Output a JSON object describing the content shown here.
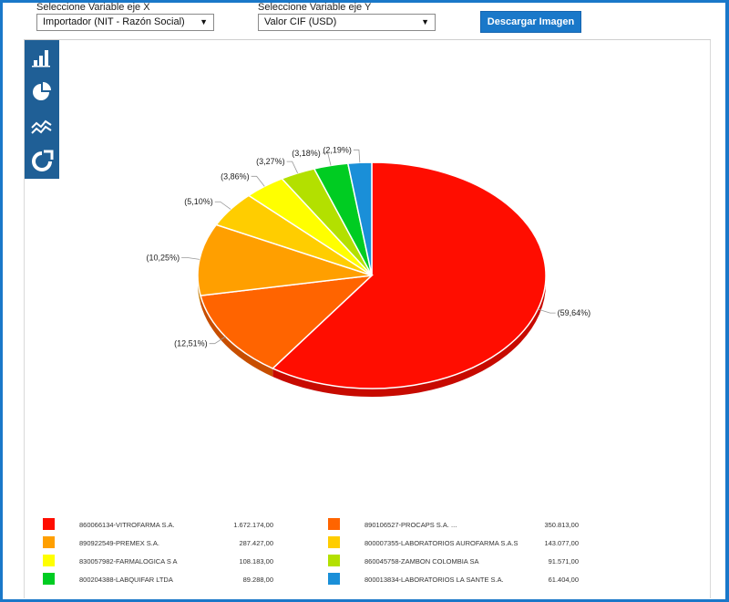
{
  "controls": {
    "x_label": "Seleccione Variable eje X",
    "x_value": "Importador (NIT - Razón Social)",
    "y_label": "Seleccione Variable eje Y",
    "y_value": "Valor CIF (USD)",
    "download_label": "Descargar Imagen"
  },
  "toolbar": {
    "icons": [
      "bar-chart-icon",
      "pie-chart-icon",
      "line-chart-icon",
      "donut-chart-icon"
    ]
  },
  "chart_data": {
    "type": "pie",
    "slices": [
      {
        "name": "860066134-VITROFARMA S.A.",
        "value": "1.672.174,00",
        "percent_label": "(59,64%)",
        "percent": 59.64,
        "color": "#ff0d00"
      },
      {
        "name": "890106527-PROCAPS S.A. ...",
        "value": "350.813,00",
        "percent_label": "(12,51%)",
        "percent": 12.51,
        "color": "#ff6400"
      },
      {
        "name": "890922549-PREMEX S.A.",
        "value": "287.427,00",
        "percent_label": "(10,25%)",
        "percent": 10.25,
        "color": "#ff9f00"
      },
      {
        "name": "800007355-LABORATORIOS AUROFARMA S.A.S",
        "value": "143.077,00",
        "percent_label": "(5,10%)",
        "percent": 5.1,
        "color": "#ffcd00"
      },
      {
        "name": "830057982-FARMALOGICA S A",
        "value": "108.183,00",
        "percent_label": "(3,86%)",
        "percent": 3.86,
        "color": "#ffff00"
      },
      {
        "name": "860045758-ZAMBON COLOMBIA SA",
        "value": "91.571,00",
        "percent_label": "(3,27%)",
        "percent": 3.27,
        "color": "#b3e000"
      },
      {
        "name": "800204388-LABQUIFAR LTDA",
        "value": "89.288,00",
        "percent_label": "(3,18%)",
        "percent": 3.18,
        "color": "#00cc22"
      },
      {
        "name": "800013834-LABORATORIOS LA SANTE S.A.",
        "value": "61.404,00",
        "percent_label": "(2,19%)",
        "percent": 2.19,
        "color": "#1a8fd8"
      }
    ],
    "legend": "bottom"
  }
}
